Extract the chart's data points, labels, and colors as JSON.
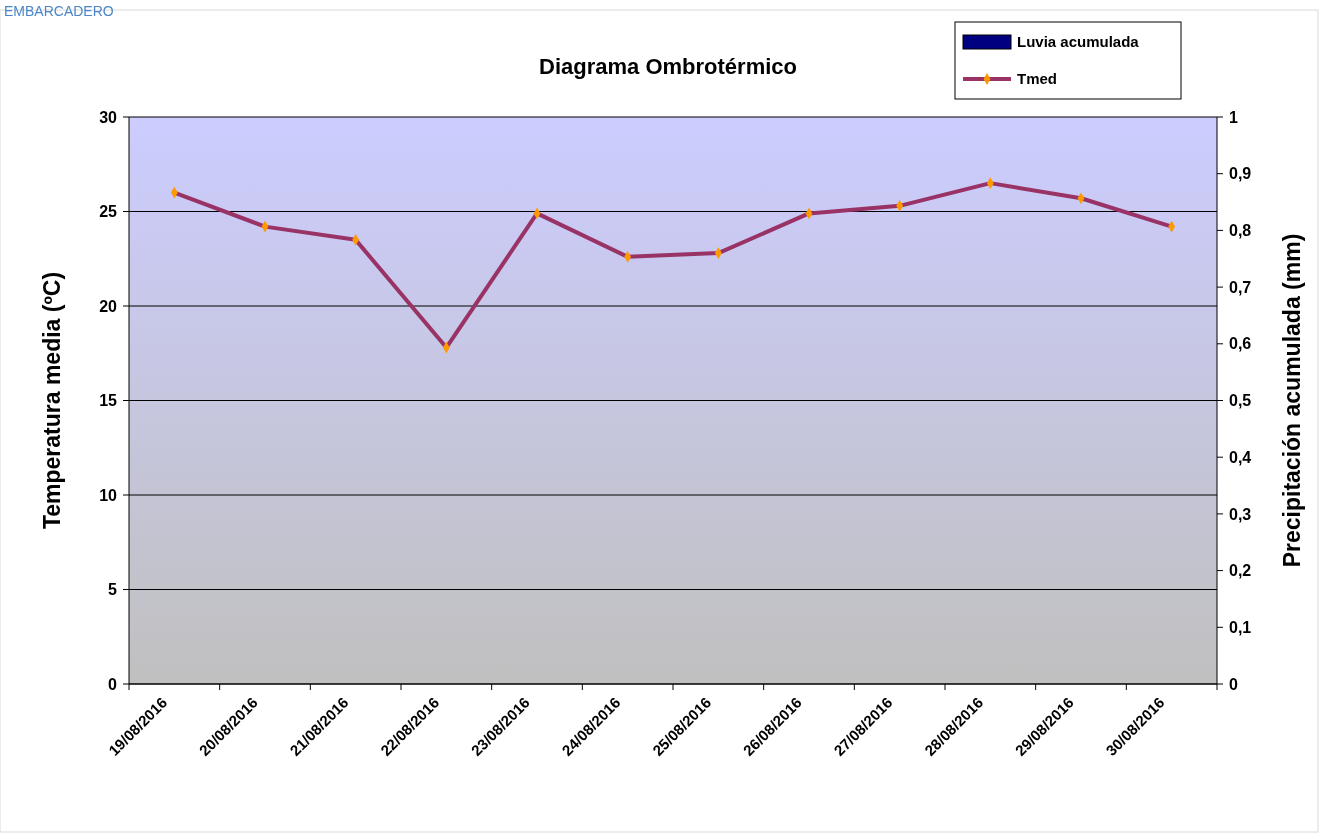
{
  "chart_data": {
    "type": "line",
    "title": "Diagrama Ombrotérmico",
    "ylabel": "Temperatura media (ºC)",
    "y2label": "Precipitación acumulada (mm)",
    "annotations": [
      "EMBARCADERO"
    ],
    "categories": [
      "19/08/2016",
      "20/08/2016",
      "21/08/2016",
      "22/08/2016",
      "23/08/2016",
      "24/08/2016",
      "25/08/2016",
      "26/08/2016",
      "27/08/2016",
      "28/08/2016",
      "29/08/2016",
      "30/08/2016"
    ],
    "series": [
      {
        "name": "Luvia acumulada",
        "type": "bar",
        "color": "#000080",
        "values": [
          0,
          0,
          0,
          0,
          0,
          0,
          0,
          0,
          0,
          0,
          0,
          0
        ]
      },
      {
        "name": "Tmed",
        "color": "#993366",
        "marker": "diamond",
        "values": [
          26.0,
          24.2,
          23.5,
          17.8,
          24.9,
          22.6,
          22.8,
          24.9,
          25.3,
          26.5,
          25.7,
          24.2
        ]
      }
    ],
    "ylim": [
      0,
      30
    ],
    "yticks": [
      0,
      5,
      10,
      15,
      20,
      25,
      30
    ],
    "y2lim": [
      0,
      1
    ],
    "y2ticks": [
      0,
      {
        "value": 0.1,
        "label": "0,1"
      },
      {
        "value": 0.2,
        "label": "0,2"
      },
      {
        "value": 0.3,
        "label": "0,3"
      },
      {
        "value": 0.4,
        "label": "0,4"
      },
      {
        "value": 0.5,
        "label": "0,5"
      },
      {
        "value": 0.6,
        "label": "0,6"
      },
      {
        "value": 0.7,
        "label": "0,7"
      },
      {
        "value": 0.8,
        "label": "0,8"
      },
      {
        "value": 0.9,
        "label": "0,9"
      },
      1
    ],
    "grid": "y",
    "legend": "top right"
  }
}
